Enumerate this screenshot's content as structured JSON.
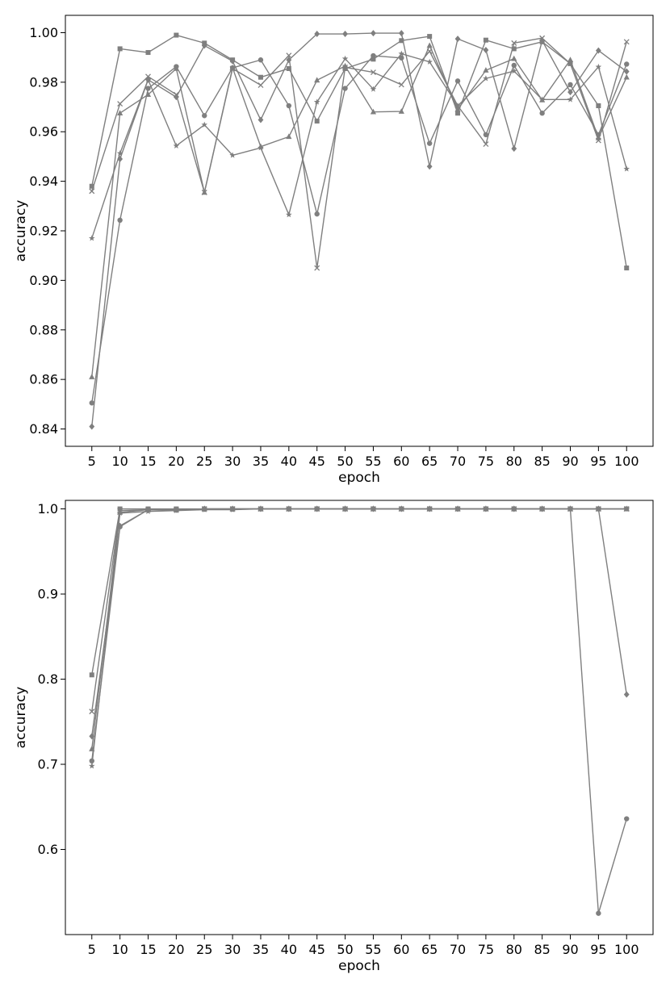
{
  "colors": {
    "series": "#7f7f7f",
    "axes": "#000000",
    "background": "#ffffff"
  },
  "chart_data": [
    {
      "type": "line",
      "xlabel": "epoch",
      "ylabel": "accuracy",
      "ylim": [
        0.833,
        1.007
      ],
      "yticks": [
        0.84,
        0.86,
        0.88,
        0.9,
        0.92,
        0.94,
        0.96,
        0.98,
        1.0
      ],
      "ytick_labels": [
        "0.84",
        "0.86",
        "0.88",
        "0.90",
        "0.92",
        "0.94",
        "0.96",
        "0.98",
        "1.00"
      ],
      "x": [
        5,
        10,
        15,
        20,
        25,
        30,
        35,
        40,
        45,
        50,
        55,
        60,
        65,
        70,
        75,
        80,
        85,
        90,
        95,
        100
      ],
      "x_tick_labels": [
        "5",
        "10",
        "15",
        "20",
        "25",
        "30",
        "35",
        "40",
        "45",
        "50",
        "55",
        "60",
        "65",
        "70",
        "75",
        "80",
        "85",
        "90",
        "95",
        "100"
      ],
      "grid": false,
      "legend": "none",
      "series": [
        {
          "marker": "square",
          "values": [
            0.938,
            0.9935,
            0.992,
            0.999,
            0.9958,
            0.989,
            0.982,
            0.9855,
            0.9643,
            0.9855,
            0.9893,
            0.9968,
            0.9985,
            0.9675,
            0.997,
            0.9935,
            0.9963,
            0.9875,
            0.9705,
            0.905
          ]
        },
        {
          "marker": "diamond",
          "values": [
            0.841,
            0.949,
            0.981,
            0.974,
            0.9948,
            0.9885,
            0.9648,
            0.989,
            0.9995,
            0.9995,
            0.9998,
            0.9998,
            0.946,
            0.9975,
            0.993,
            0.9532,
            0.9968,
            0.976,
            0.9928,
            0.9843
          ]
        },
        {
          "marker": "circle",
          "values": [
            0.8505,
            0.9243,
            0.9775,
            0.9863,
            0.9665,
            0.9858,
            0.989,
            0.9705,
            0.9268,
            0.9775,
            0.9907,
            0.9898,
            0.9553,
            0.9805,
            0.9588,
            0.9868,
            0.9675,
            0.979,
            0.9588,
            0.9873
          ]
        },
        {
          "marker": "triangle",
          "values": [
            0.861,
            0.9675,
            0.975,
            0.9855,
            0.9355,
            0.9858,
            0.954,
            0.958,
            0.9808,
            0.9865,
            0.968,
            0.9682,
            0.9948,
            0.969,
            0.9848,
            0.9895,
            0.9728,
            0.989,
            0.9575,
            0.982
          ]
        },
        {
          "marker": "x",
          "values": [
            0.936,
            0.9713,
            0.9823,
            0.975,
            0.9355,
            0.9855,
            0.9788,
            0.9908,
            0.905,
            0.986,
            0.984,
            0.979,
            0.9925,
            0.9705,
            0.955,
            0.9958,
            0.9978,
            0.9875,
            0.9565,
            0.9963
          ]
        },
        {
          "marker": "star",
          "values": [
            0.917,
            0.9513,
            0.981,
            0.9543,
            0.9628,
            0.9505,
            0.9535,
            0.9265,
            0.972,
            0.9895,
            0.9772,
            0.9915,
            0.9882,
            0.9705,
            0.9815,
            0.9845,
            0.973,
            0.973,
            0.9862,
            0.945
          ]
        }
      ]
    },
    {
      "type": "line",
      "xlabel": "epoch",
      "ylabel": "accuracy",
      "ylim": [
        0.5,
        1.01
      ],
      "yticks": [
        0.6,
        0.7,
        0.8,
        0.9,
        1.0
      ],
      "ytick_labels": [
        "0.6",
        "0.7",
        "0.8",
        "0.9",
        "1.0"
      ],
      "x": [
        5,
        10,
        15,
        20,
        25,
        30,
        35,
        40,
        45,
        50,
        55,
        60,
        65,
        70,
        75,
        80,
        85,
        90,
        95,
        100
      ],
      "x_tick_labels": [
        "5",
        "10",
        "15",
        "20",
        "25",
        "30",
        "35",
        "40",
        "45",
        "50",
        "55",
        "60",
        "65",
        "70",
        "75",
        "80",
        "85",
        "90",
        "95",
        "100"
      ],
      "grid": false,
      "legend": "none",
      "series": [
        {
          "marker": "square",
          "values": [
            0.805,
            1.0,
            1.0,
            1.0,
            1.0,
            1.0,
            1.0,
            1.0,
            1.0,
            1.0,
            1.0,
            1.0,
            1.0,
            1.0,
            1.0,
            1.0,
            1.0,
            1.0,
            1.0,
            1.0
          ]
        },
        {
          "marker": "x",
          "values": [
            0.762,
            0.998,
            0.999,
            0.999,
            1.0,
            1.0,
            1.0,
            1.0,
            1.0,
            1.0,
            1.0,
            1.0,
            1.0,
            1.0,
            1.0,
            1.0,
            1.0,
            1.0,
            1.0,
            1.0
          ]
        },
        {
          "marker": "diamond",
          "values": [
            0.733,
            0.98,
            0.999,
            0.999,
            1.0,
            1.0,
            1.0,
            1.0,
            1.0,
            1.0,
            1.0,
            1.0,
            1.0,
            1.0,
            1.0,
            1.0,
            1.0,
            1.0,
            1.0,
            0.782
          ]
        },
        {
          "marker": "triangle",
          "values": [
            0.718,
            0.996,
            0.999,
            0.999,
            1.0,
            1.0,
            1.0,
            1.0,
            1.0,
            1.0,
            1.0,
            1.0,
            1.0,
            1.0,
            1.0,
            1.0,
            1.0,
            1.0,
            1.0,
            1.0
          ]
        },
        {
          "marker": "circle",
          "values": [
            0.704,
            0.979,
            0.999,
            0.999,
            1.0,
            1.0,
            1.0,
            1.0,
            1.0,
            1.0,
            1.0,
            1.0,
            1.0,
            1.0,
            1.0,
            1.0,
            1.0,
            1.0,
            0.525,
            0.636
          ]
        },
        {
          "marker": "star",
          "values": [
            0.698,
            0.995,
            0.997,
            0.998,
            0.999,
            0.999,
            1.0,
            1.0,
            1.0,
            1.0,
            1.0,
            1.0,
            1.0,
            1.0,
            1.0,
            1.0,
            1.0,
            1.0,
            1.0,
            1.0
          ]
        }
      ]
    }
  ]
}
